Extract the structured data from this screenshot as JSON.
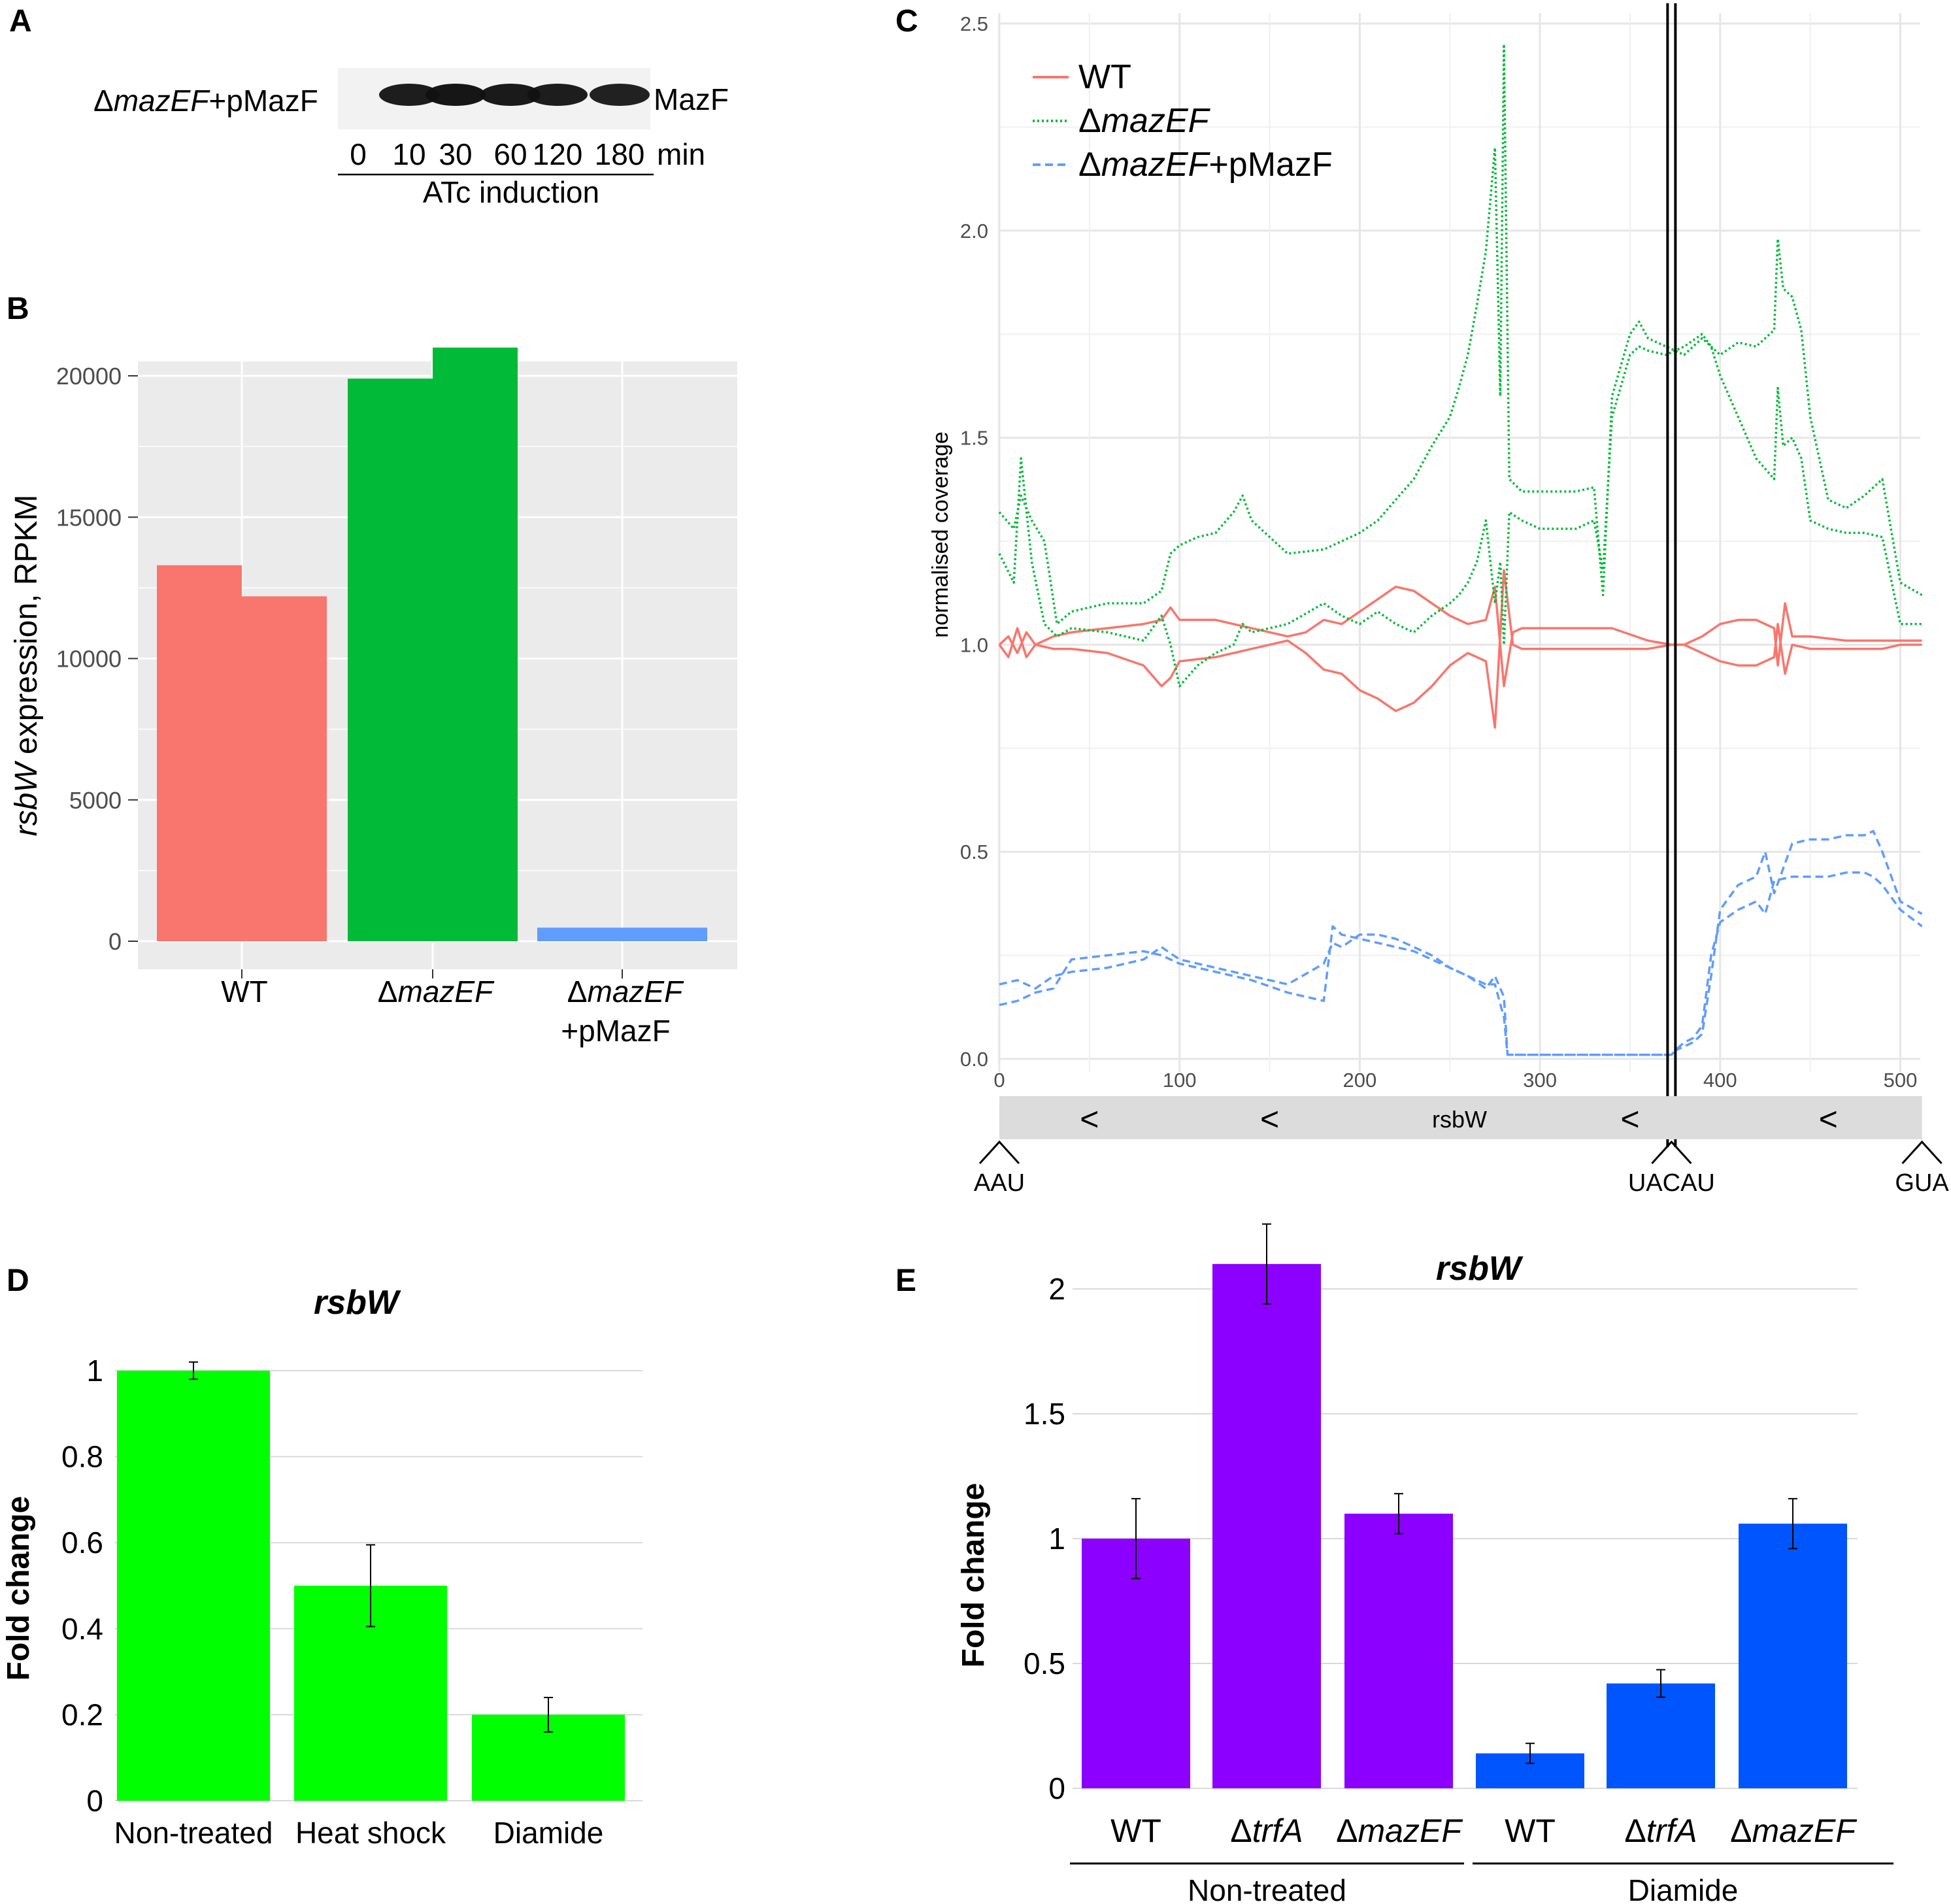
{
  "panel_labels": {
    "a": "A",
    "b": "B",
    "c": "C",
    "d": "D",
    "e": "E"
  },
  "colors": {
    "wt": "#f8766d",
    "mazef": "#00ba38",
    "pmazf": "#619cff",
    "d_bar": "#00ff00",
    "e_nontreated": "#8b00ff",
    "e_diamide": "#0055ff",
    "grid_gray": "#ebebeb",
    "grid_line": "#ffffff",
    "blot_band": "#111111"
  },
  "panel_a": {
    "sample_prefix": "Δ",
    "sample_italic": "mazEF",
    "sample_suffix": "+pMazF",
    "protein": "MazF",
    "lanes": [
      "0",
      "10",
      "30",
      "60",
      "120",
      "180"
    ],
    "unit": "min",
    "induction": "ATc induction",
    "band_intensity": [
      0.02,
      0.95,
      0.98,
      0.96,
      0.95,
      0.93
    ]
  },
  "chart_data": [
    {
      "panel": "B",
      "type": "bar",
      "categories": [
        {
          "line1_prefix": "",
          "line1_italic": "",
          "line1_suffix": "WT",
          "line2": ""
        },
        {
          "line1_prefix": "Δ",
          "line1_italic": "mazEF",
          "line1_suffix": "",
          "line2": ""
        },
        {
          "line1_prefix": "Δ",
          "line1_italic": "mazEF",
          "line1_suffix": "",
          "line2": "+pMazF"
        }
      ],
      "replicates": [
        [
          13300,
          12200
        ],
        [
          19900,
          21000
        ],
        [
          480,
          480
        ]
      ],
      "ylabel_italic": "rsbW",
      "ylabel_rest": " expression, RPKM",
      "yticks": [
        "0",
        "5000",
        "10000",
        "15000",
        "20000"
      ],
      "ytick_values": [
        0,
        5000,
        10000,
        15000,
        20000
      ],
      "ylim": [
        0,
        21000
      ]
    },
    {
      "panel": "C",
      "type": "line",
      "ylabel": "normalised coverage",
      "xticks": [
        "0",
        "100",
        "200",
        "300",
        "400",
        "500"
      ],
      "xtick_values": [
        0,
        100,
        200,
        300,
        400,
        500
      ],
      "yticks": [
        "0.0",
        "0.5",
        "1.0",
        "1.5",
        "2.0",
        "2.5"
      ],
      "ytick_values": [
        0,
        0.5,
        1.0,
        1.5,
        2.0,
        2.5
      ],
      "xlim": [
        0,
        512
      ],
      "ylim": [
        0,
        2.5
      ],
      "legend": [
        {
          "prefix": "",
          "italic": "",
          "suffix": "WT",
          "color_key": "wt",
          "dash": "solid"
        },
        {
          "prefix": "Δ",
          "italic": "mazEF",
          "suffix": "",
          "color_key": "mazef",
          "dash": "dotted"
        },
        {
          "prefix": "Δ",
          "italic": "mazEF",
          "suffix": "+pMazF",
          "color_key": "pmazf",
          "dash": "dashed"
        }
      ],
      "series": [
        {
          "name": "WT rep1",
          "color_key": "wt",
          "dash": "solid",
          "x": [
            0,
            5,
            10,
            15,
            20,
            30,
            40,
            60,
            80,
            90,
            95,
            100,
            120,
            140,
            160,
            170,
            180,
            190,
            200,
            210,
            220,
            230,
            240,
            250,
            260,
            270,
            275,
            280,
            285,
            290,
            300,
            320,
            340,
            360,
            373,
            380,
            390,
            400,
            410,
            420,
            430,
            432,
            436,
            440,
            450,
            470,
            490,
            500,
            512
          ],
          "y": [
            1.0,
            0.97,
            1.04,
            0.97,
            1.0,
            1.02,
            1.03,
            1.04,
            1.05,
            1.06,
            1.09,
            1.06,
            1.06,
            1.04,
            1.02,
            1.03,
            1.06,
            1.05,
            1.08,
            1.11,
            1.14,
            1.13,
            1.1,
            1.07,
            1.05,
            1.06,
            1.14,
            0.9,
            1.03,
            1.04,
            1.04,
            1.04,
            1.04,
            1.01,
            1.0,
            1.0,
            1.02,
            1.05,
            1.06,
            1.06,
            1.04,
            0.95,
            1.1,
            1.02,
            1.02,
            1.01,
            1.01,
            1.01,
            1.01
          ]
        },
        {
          "name": "WT rep2",
          "color_key": "wt",
          "dash": "solid",
          "x": [
            0,
            5,
            10,
            15,
            20,
            30,
            40,
            60,
            80,
            90,
            95,
            100,
            120,
            140,
            160,
            170,
            180,
            190,
            200,
            210,
            220,
            230,
            240,
            250,
            260,
            270,
            275,
            280,
            285,
            290,
            300,
            320,
            340,
            360,
            373,
            380,
            390,
            400,
            410,
            420,
            430,
            432,
            436,
            440,
            450,
            470,
            490,
            500,
            512
          ],
          "y": [
            1.0,
            1.02,
            0.98,
            1.03,
            1.0,
            0.99,
            0.99,
            0.98,
            0.95,
            0.9,
            0.92,
            0.96,
            0.97,
            0.99,
            1.01,
            0.98,
            0.94,
            0.93,
            0.89,
            0.87,
            0.84,
            0.86,
            0.9,
            0.95,
            0.98,
            0.96,
            0.8,
            1.18,
            1.0,
            0.99,
            0.99,
            0.99,
            0.99,
            0.99,
            1.0,
            1.0,
            0.98,
            0.96,
            0.95,
            0.95,
            0.97,
            1.05,
            0.93,
            1.0,
            0.99,
            0.99,
            0.99,
            1.0,
            1.0
          ]
        },
        {
          "name": "dmazEF rep1",
          "color_key": "mazef",
          "dash": "dotted",
          "x": [
            0,
            8,
            12,
            18,
            25,
            32,
            40,
            60,
            80,
            90,
            95,
            100,
            110,
            120,
            130,
            135,
            140,
            160,
            180,
            190,
            200,
            210,
            220,
            230,
            240,
            250,
            255,
            260,
            265,
            270,
            275,
            278,
            280,
            283,
            290,
            300,
            320,
            330,
            335,
            340,
            350,
            355,
            360,
            370,
            380,
            390,
            395,
            400,
            410,
            420,
            430,
            432,
            435,
            440,
            445,
            450,
            460,
            470,
            480,
            490,
            500,
            512
          ],
          "y": [
            1.32,
            1.28,
            1.36,
            1.3,
            1.25,
            1.05,
            1.08,
            1.1,
            1.1,
            1.13,
            1.22,
            1.24,
            1.26,
            1.27,
            1.32,
            1.36,
            1.3,
            1.22,
            1.23,
            1.25,
            1.27,
            1.3,
            1.35,
            1.4,
            1.48,
            1.55,
            1.62,
            1.7,
            1.82,
            1.95,
            2.2,
            1.6,
            2.45,
            1.4,
            1.37,
            1.37,
            1.37,
            1.38,
            1.12,
            1.6,
            1.75,
            1.78,
            1.74,
            1.72,
            1.7,
            1.74,
            1.72,
            1.7,
            1.73,
            1.72,
            1.76,
            1.98,
            1.86,
            1.84,
            1.76,
            1.55,
            1.35,
            1.33,
            1.36,
            1.4,
            1.15,
            1.12
          ]
        },
        {
          "name": "dmazEF rep2",
          "color_key": "mazef",
          "dash": "dotted",
          "x": [
            0,
            8,
            12,
            18,
            25,
            32,
            40,
            60,
            80,
            90,
            95,
            100,
            110,
            120,
            130,
            135,
            140,
            160,
            180,
            190,
            200,
            210,
            220,
            230,
            240,
            250,
            255,
            260,
            265,
            270,
            275,
            278,
            280,
            283,
            290,
            300,
            320,
            330,
            335,
            340,
            350,
            355,
            360,
            370,
            380,
            390,
            395,
            400,
            410,
            420,
            430,
            432,
            435,
            440,
            445,
            450,
            460,
            470,
            480,
            490,
            500,
            512
          ],
          "y": [
            1.22,
            1.15,
            1.45,
            1.2,
            1.05,
            1.02,
            1.04,
            1.03,
            1.01,
            1.07,
            1.0,
            0.9,
            0.95,
            0.98,
            1.0,
            1.05,
            1.03,
            1.05,
            1.1,
            1.07,
            1.05,
            1.08,
            1.05,
            1.03,
            1.07,
            1.1,
            1.12,
            1.15,
            1.2,
            1.3,
            1.1,
            1.2,
            1.0,
            1.32,
            1.3,
            1.28,
            1.28,
            1.3,
            1.18,
            1.55,
            1.7,
            1.72,
            1.71,
            1.7,
            1.72,
            1.75,
            1.72,
            1.65,
            1.55,
            1.45,
            1.4,
            1.62,
            1.48,
            1.5,
            1.45,
            1.3,
            1.28,
            1.27,
            1.27,
            1.26,
            1.05,
            1.05
          ]
        },
        {
          "name": "dmazEF pMazF rep1",
          "color_key": "pmazf",
          "dash": "dashed",
          "x": [
            0,
            10,
            20,
            30,
            40,
            60,
            80,
            90,
            100,
            120,
            140,
            160,
            180,
            185,
            190,
            200,
            210,
            220,
            230,
            240,
            250,
            260,
            270,
            275,
            280,
            282,
            283,
            290,
            300,
            320,
            340,
            360,
            370,
            373,
            375,
            380,
            385,
            390,
            395,
            400,
            410,
            420,
            425,
            430,
            440,
            450,
            460,
            470,
            480,
            485,
            490,
            500,
            512
          ],
          "y": [
            0.18,
            0.19,
            0.17,
            0.2,
            0.21,
            0.22,
            0.24,
            0.27,
            0.24,
            0.22,
            0.2,
            0.18,
            0.23,
            0.28,
            0.27,
            0.3,
            0.3,
            0.29,
            0.27,
            0.25,
            0.22,
            0.2,
            0.17,
            0.2,
            0.15,
            0.01,
            0.01,
            0.01,
            0.01,
            0.01,
            0.01,
            0.01,
            0.01,
            0.01,
            0.02,
            0.03,
            0.04,
            0.06,
            0.2,
            0.36,
            0.42,
            0.44,
            0.5,
            0.4,
            0.52,
            0.53,
            0.53,
            0.54,
            0.54,
            0.55,
            0.5,
            0.38,
            0.35
          ]
        },
        {
          "name": "dmazEF pMazF rep2",
          "color_key": "pmazf",
          "dash": "dashed",
          "x": [
            0,
            10,
            20,
            30,
            40,
            60,
            80,
            90,
            100,
            120,
            140,
            160,
            180,
            185,
            190,
            200,
            210,
            220,
            230,
            240,
            250,
            260,
            270,
            275,
            280,
            282,
            283,
            290,
            300,
            320,
            340,
            360,
            370,
            373,
            375,
            380,
            385,
            390,
            395,
            400,
            410,
            420,
            425,
            430,
            440,
            450,
            460,
            470,
            480,
            485,
            490,
            500,
            512
          ],
          "y": [
            0.13,
            0.14,
            0.16,
            0.17,
            0.24,
            0.25,
            0.26,
            0.25,
            0.23,
            0.21,
            0.19,
            0.16,
            0.14,
            0.32,
            0.3,
            0.29,
            0.28,
            0.27,
            0.26,
            0.24,
            0.22,
            0.2,
            0.18,
            0.18,
            0.1,
            0.01,
            0.01,
            0.01,
            0.01,
            0.01,
            0.01,
            0.01,
            0.01,
            0.01,
            0.02,
            0.04,
            0.05,
            0.08,
            0.25,
            0.33,
            0.36,
            0.38,
            0.35,
            0.43,
            0.44,
            0.44,
            0.44,
            0.45,
            0.45,
            0.44,
            0.42,
            0.36,
            0.32
          ]
        }
      ],
      "gene_track": {
        "label": "rsbW",
        "arrow_glyph": "<",
        "arrow_x": [
          50,
          150,
          350,
          460
        ]
      },
      "cut_x": 373,
      "sites": [
        {
          "label": "AAU",
          "x": 0
        },
        {
          "label": "UACAU",
          "x": 373
        },
        {
          "label": "GUA",
          "x": 512
        }
      ]
    },
    {
      "panel": "D",
      "type": "bar",
      "title": "rsbW",
      "ylabel": "Fold change",
      "categories": [
        "Non-treated",
        "Heat shock",
        "Diamide"
      ],
      "values": [
        1.0,
        0.5,
        0.2
      ],
      "errors": [
        0.02,
        0.095,
        0.04
      ],
      "yticks": [
        "0",
        "0.2",
        "0.4",
        "0.6",
        "0.8",
        "1"
      ],
      "ytick_values": [
        0,
        0.2,
        0.4,
        0.6,
        0.8,
        1.0
      ],
      "ylim": [
        0,
        1.0
      ]
    },
    {
      "panel": "E",
      "type": "bar",
      "title": "rsbW",
      "ylabel": "Fold change",
      "categories": [
        {
          "prefix": "",
          "italic": "",
          "suffix": "WT",
          "group": 0
        },
        {
          "prefix": "Δ",
          "italic": "trfA",
          "suffix": "",
          "group": 0
        },
        {
          "prefix": "Δ",
          "italic": "mazEF",
          "suffix": "",
          "group": 0
        },
        {
          "prefix": "",
          "italic": "",
          "suffix": "WT",
          "group": 1
        },
        {
          "prefix": "Δ",
          "italic": "trfA",
          "suffix": "",
          "group": 1
        },
        {
          "prefix": "Δ",
          "italic": "mazEF",
          "suffix": "",
          "group": 1
        }
      ],
      "values": [
        1.0,
        2.1,
        1.1,
        0.14,
        0.42,
        1.06
      ],
      "errors": [
        0.16,
        0.16,
        0.08,
        0.04,
        0.055,
        0.1
      ],
      "groups": [
        "Non-treated",
        "Diamide"
      ],
      "yticks": [
        "0",
        "0.5",
        "1",
        "1.5",
        "2"
      ],
      "ytick_values": [
        0,
        0.5,
        1.0,
        1.5,
        2.0
      ],
      "ylim": [
        0,
        2.0
      ]
    }
  ]
}
